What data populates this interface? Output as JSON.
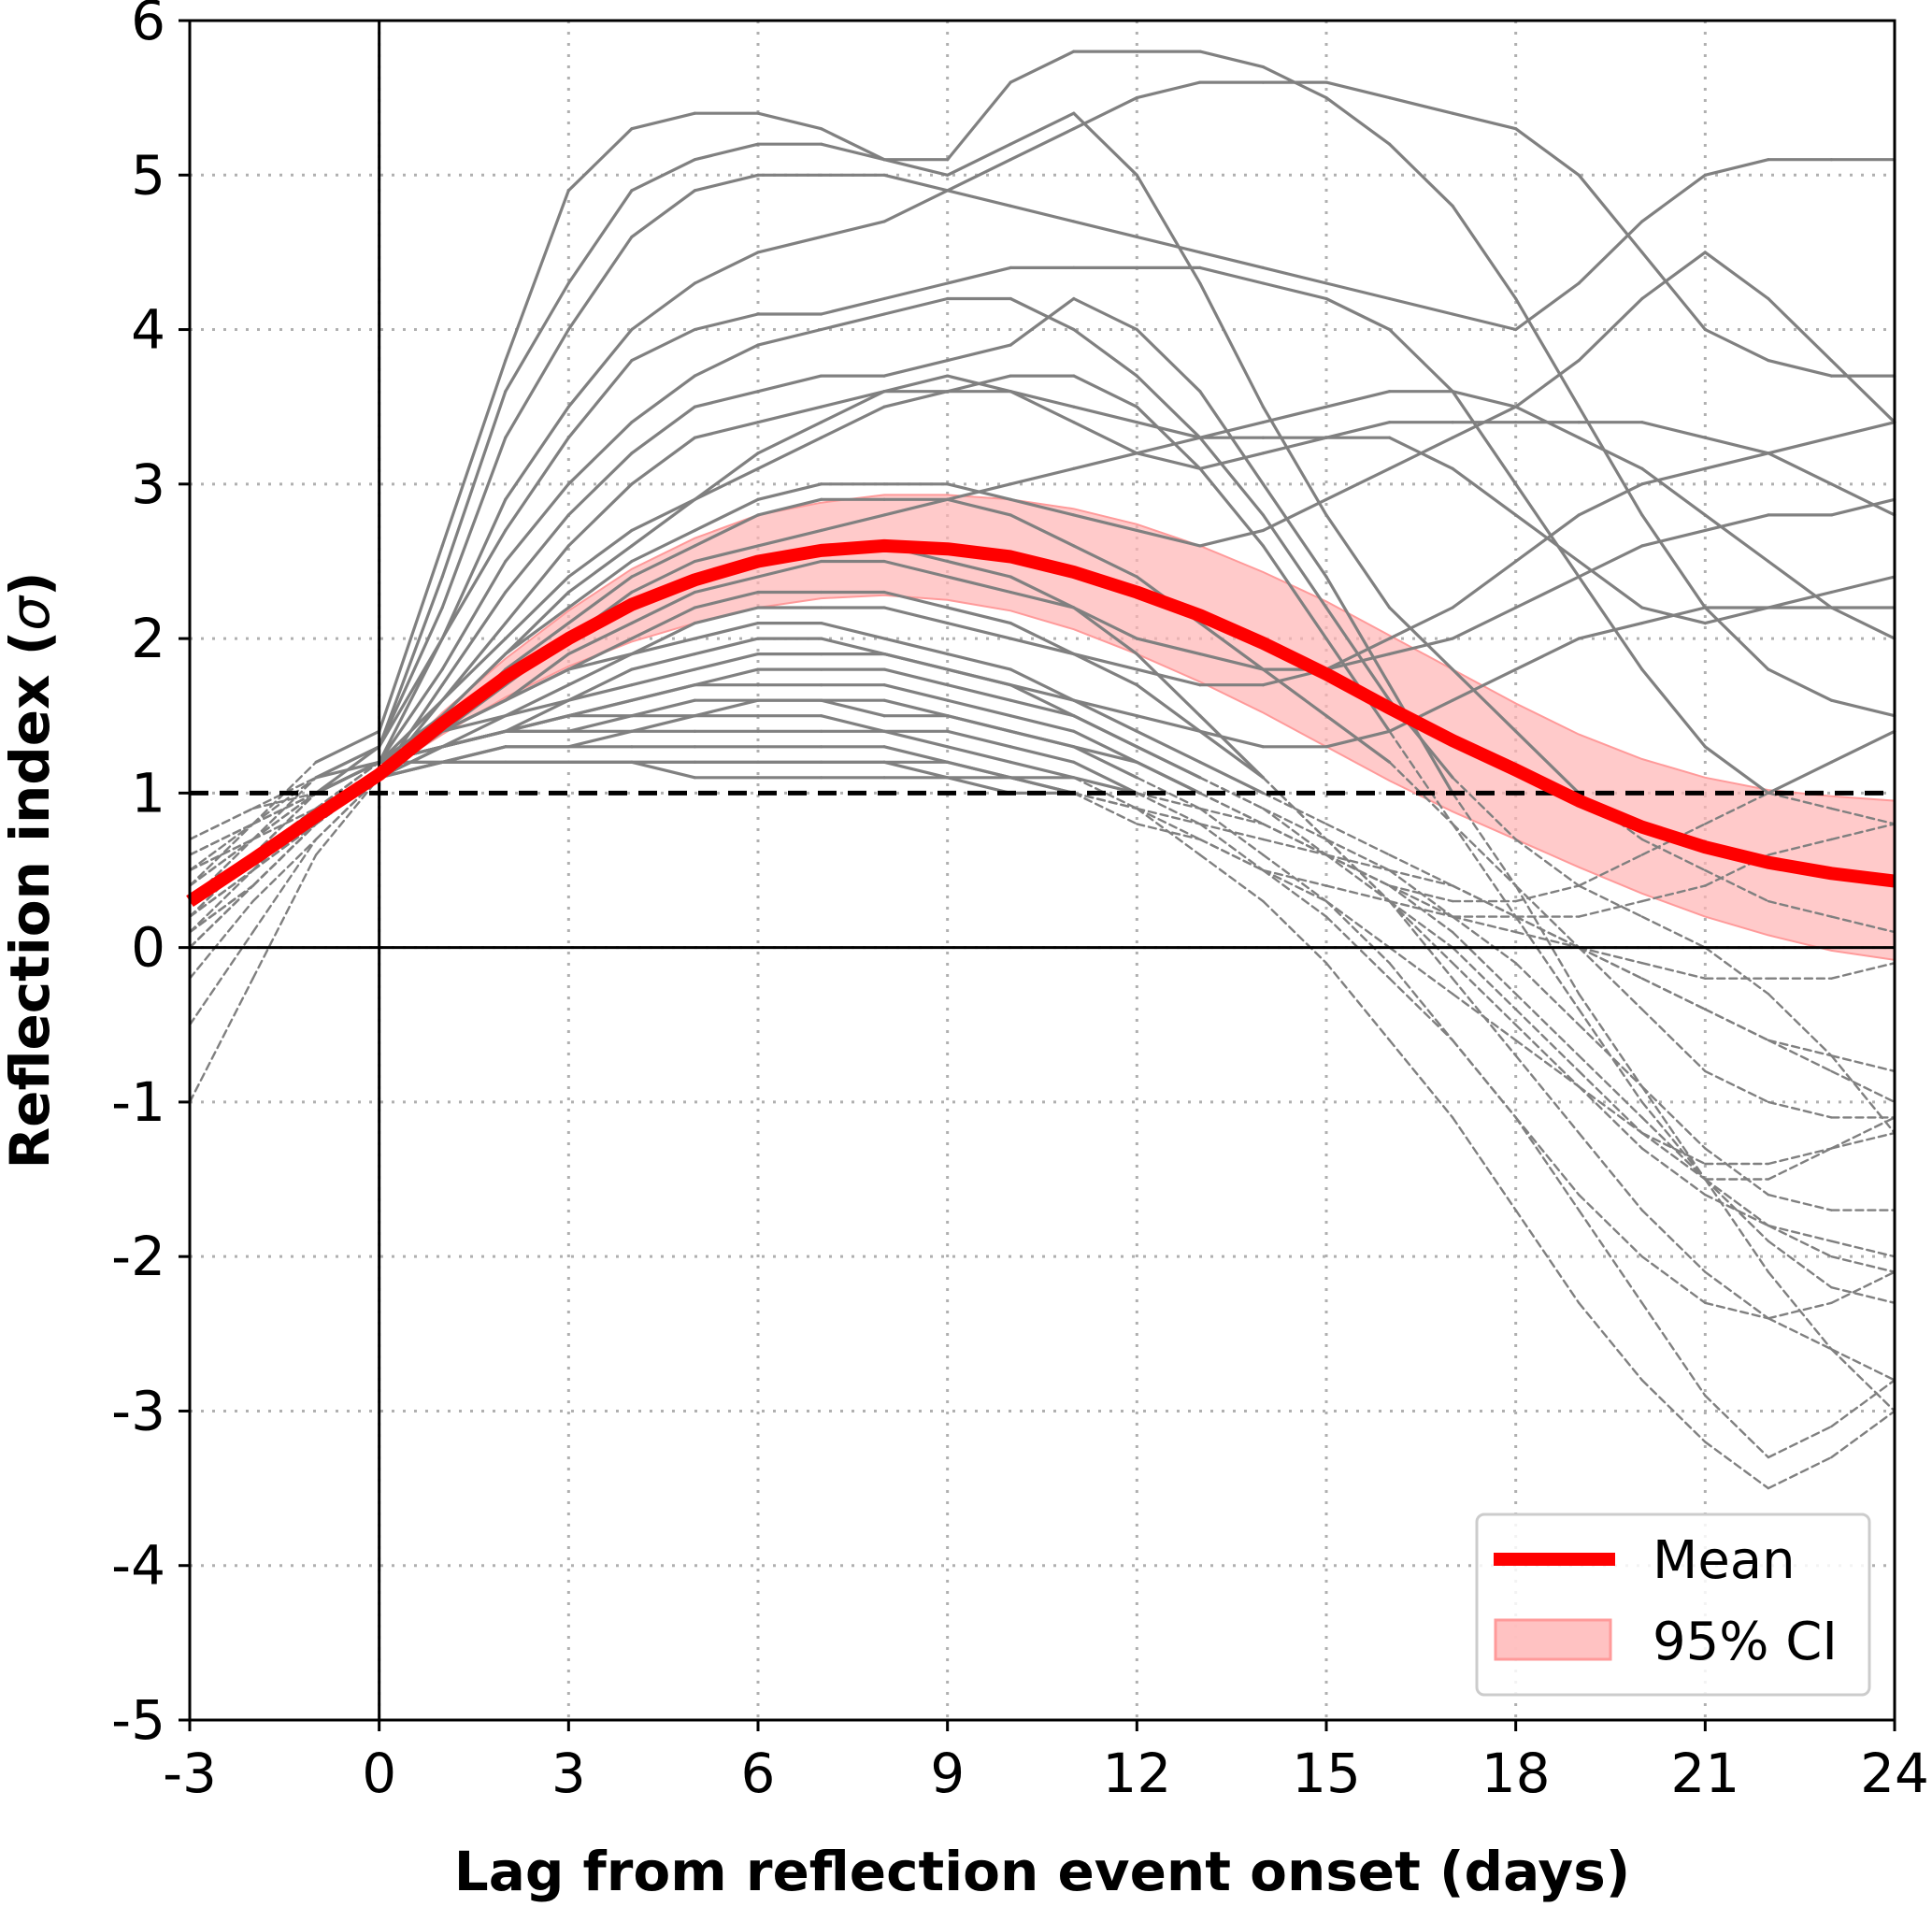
{
  "chart_data": {
    "type": "line",
    "xlabel": "Lag from reflection event onset (days)",
    "ylabel_text": "Reflection index (",
    "ylabel_symbol": "σ",
    "ylabel_close": ")",
    "xlim": [
      -3,
      24
    ],
    "ylim": [
      -5,
      6
    ],
    "xticks": [
      -3,
      0,
      3,
      6,
      9,
      12,
      15,
      18,
      21,
      24
    ],
    "yticks": [
      -5,
      -4,
      -3,
      -2,
      -1,
      0,
      1,
      2,
      3,
      4,
      5,
      6
    ],
    "grid": true,
    "threshold": 1,
    "legend_position": "lower-right",
    "colors": {
      "mean": "#ff0000",
      "ci_fill": "#ffb3b3",
      "ci_edge": "#ff9a9a",
      "events": "#808080",
      "grid": "#b0b0b0",
      "axes": "#000000"
    },
    "legend": {
      "mean_label": "Mean",
      "ci_label": "95% CI"
    },
    "x": [
      -3,
      -2,
      -1,
      0,
      1,
      2,
      3,
      4,
      5,
      6,
      7,
      8,
      9,
      10,
      11,
      12,
      13,
      14,
      15,
      16,
      17,
      18,
      19,
      20,
      21,
      22,
      23,
      24
    ],
    "mean": [
      0.3,
      0.57,
      0.85,
      1.12,
      1.45,
      1.75,
      2.0,
      2.22,
      2.38,
      2.5,
      2.57,
      2.6,
      2.58,
      2.53,
      2.43,
      2.3,
      2.15,
      1.97,
      1.77,
      1.55,
      1.34,
      1.15,
      0.95,
      0.78,
      0.65,
      0.55,
      0.48,
      0.43
    ],
    "ci_upper": [
      0.3,
      0.57,
      0.85,
      1.12,
      1.52,
      1.87,
      2.18,
      2.45,
      2.65,
      2.8,
      2.88,
      2.93,
      2.93,
      2.9,
      2.84,
      2.74,
      2.6,
      2.43,
      2.24,
      2.02,
      1.8,
      1.58,
      1.38,
      1.22,
      1.1,
      1.02,
      0.98,
      0.95
    ],
    "ci_lower": [
      0.3,
      0.57,
      0.85,
      1.12,
      1.38,
      1.62,
      1.82,
      1.98,
      2.1,
      2.2,
      2.26,
      2.28,
      2.25,
      2.18,
      2.06,
      1.9,
      1.72,
      1.52,
      1.3,
      1.08,
      0.88,
      0.7,
      0.52,
      0.35,
      0.2,
      0.08,
      -0.02,
      -0.08
    ],
    "event_series": [
      {
        "values": [
          0.4,
          0.8,
          1.2,
          1.4,
          2.6,
          3.8,
          4.9,
          5.3,
          5.4,
          5.4,
          5.3,
          5.1,
          5.0,
          5.2,
          5.4,
          5.0,
          4.3,
          3.5,
          2.8,
          2.2,
          1.8,
          1.4,
          1.0,
          0.7,
          0.5,
          0.3,
          0.2,
          0.1
        ]
      },
      {
        "values": [
          0.2,
          0.6,
          1.0,
          1.3,
          2.4,
          3.6,
          4.3,
          4.9,
          5.1,
          5.2,
          5.2,
          5.1,
          5.1,
          5.6,
          5.8,
          5.8,
          5.8,
          5.7,
          5.5,
          5.2,
          4.8,
          4.2,
          3.5,
          2.8,
          2.2,
          1.8,
          1.6,
          1.5
        ]
      },
      {
        "values": [
          0.3,
          0.7,
          1.1,
          1.3,
          2.2,
          3.3,
          4.0,
          4.6,
          4.9,
          5.0,
          5.0,
          5.0,
          4.9,
          4.8,
          4.7,
          4.6,
          4.5,
          4.4,
          4.3,
          4.2,
          4.1,
          4.0,
          4.3,
          4.7,
          5.0,
          5.1,
          5.1,
          5.1
        ]
      },
      {
        "values": [
          0.1,
          0.5,
          0.9,
          1.2,
          2.0,
          2.9,
          3.5,
          4.0,
          4.3,
          4.5,
          4.6,
          4.7,
          4.9,
          5.1,
          5.3,
          5.5,
          5.6,
          5.6,
          5.6,
          5.5,
          5.4,
          5.3,
          5.0,
          4.5,
          4.0,
          3.8,
          3.7,
          3.7
        ]
      },
      {
        "values": [
          0.5,
          0.8,
          1.1,
          1.3,
          2.0,
          2.7,
          3.3,
          3.8,
          4.0,
          4.1,
          4.1,
          4.2,
          4.3,
          4.4,
          4.4,
          4.4,
          4.4,
          4.3,
          4.2,
          4.0,
          3.6,
          3.0,
          2.4,
          1.8,
          1.3,
          1.0,
          0.9,
          0.8
        ]
      },
      {
        "values": [
          0.2,
          0.6,
          1.0,
          1.2,
          1.8,
          2.5,
          3.0,
          3.4,
          3.7,
          3.9,
          4.0,
          4.1,
          4.2,
          4.2,
          4.0,
          3.7,
          3.3,
          2.8,
          2.2,
          1.6,
          1.1,
          0.7,
          0.4,
          0.2,
          0.0,
          -0.3,
          -0.7,
          -1.2
        ]
      },
      {
        "values": [
          0.0,
          0.4,
          0.8,
          1.1,
          1.7,
          2.3,
          2.8,
          3.2,
          3.5,
          3.6,
          3.7,
          3.7,
          3.8,
          3.9,
          4.2,
          4.0,
          3.6,
          3.0,
          2.4,
          1.7,
          1.0,
          0.4,
          -0.3,
          -0.9,
          -1.5,
          -2.1,
          -2.6,
          -3.0
        ]
      },
      {
        "values": [
          -0.5,
          0.1,
          0.7,
          1.1,
          1.6,
          2.1,
          2.6,
          3.0,
          3.3,
          3.4,
          3.5,
          3.6,
          3.6,
          3.6,
          3.5,
          3.4,
          3.3,
          3.3,
          3.3,
          3.4,
          3.4,
          3.4,
          3.4,
          3.4,
          3.3,
          3.2,
          3.0,
          2.8
        ]
      },
      {
        "values": [
          0.6,
          0.8,
          1.0,
          1.2,
          1.6,
          2.0,
          2.4,
          2.7,
          2.9,
          3.1,
          3.3,
          3.5,
          3.6,
          3.7,
          3.7,
          3.5,
          3.1,
          2.6,
          2.0,
          1.4,
          0.8,
          0.2,
          -0.4,
          -1.0,
          -1.5,
          -1.9,
          -2.2,
          -2.3
        ]
      },
      {
        "values": [
          -1.0,
          -0.2,
          0.6,
          1.1,
          1.5,
          1.9,
          2.3,
          2.6,
          2.9,
          3.2,
          3.4,
          3.6,
          3.7,
          3.6,
          3.4,
          3.2,
          3.1,
          3.2,
          3.3,
          3.3,
          3.1,
          2.8,
          2.5,
          2.2,
          2.1,
          2.2,
          2.3,
          2.4
        ]
      },
      {
        "values": [
          0.3,
          0.6,
          0.9,
          1.2,
          1.5,
          1.9,
          2.2,
          2.5,
          2.7,
          2.9,
          3.0,
          3.0,
          3.0,
          2.9,
          2.8,
          2.7,
          2.6,
          2.7,
          2.9,
          3.1,
          3.3,
          3.5,
          3.8,
          4.2,
          4.5,
          4.2,
          3.8,
          3.4
        ]
      },
      {
        "values": [
          0.2,
          0.5,
          0.9,
          1.1,
          1.4,
          1.8,
          2.1,
          2.4,
          2.6,
          2.8,
          2.9,
          2.9,
          2.9,
          2.8,
          2.6,
          2.4,
          2.1,
          1.8,
          1.5,
          1.2,
          0.8,
          0.4,
          0.0,
          -0.4,
          -0.8,
          -1.0,
          -1.1,
          -1.1
        ]
      },
      {
        "values": [
          0.5,
          0.7,
          0.9,
          1.1,
          1.4,
          1.7,
          2.0,
          2.3,
          2.5,
          2.6,
          2.7,
          2.8,
          2.9,
          3.0,
          3.1,
          3.2,
          3.3,
          3.4,
          3.5,
          3.6,
          3.6,
          3.5,
          3.3,
          3.1,
          2.8,
          2.5,
          2.2,
          2.0
        ]
      },
      {
        "values": [
          0.1,
          0.4,
          0.8,
          1.1,
          1.4,
          1.7,
          2.0,
          2.2,
          2.4,
          2.5,
          2.6,
          2.6,
          2.5,
          2.4,
          2.2,
          1.9,
          1.5,
          1.1,
          0.7,
          0.3,
          -0.1,
          -0.5,
          -0.9,
          -1.3,
          -1.6,
          -1.8,
          -1.9,
          -2.0
        ]
      },
      {
        "values": [
          0.7,
          0.9,
          1.0,
          1.2,
          1.4,
          1.6,
          1.9,
          2.1,
          2.3,
          2.4,
          2.5,
          2.5,
          2.4,
          2.3,
          2.2,
          2.0,
          1.9,
          1.8,
          1.8,
          1.9,
          2.0,
          2.2,
          2.4,
          2.6,
          2.7,
          2.8,
          2.8,
          2.9
        ]
      },
      {
        "values": [
          0.0,
          0.4,
          0.8,
          1.1,
          1.4,
          1.6,
          1.8,
          2.0,
          2.2,
          2.3,
          2.3,
          2.3,
          2.2,
          2.1,
          1.9,
          1.7,
          1.4,
          1.1,
          0.7,
          0.3,
          -0.2,
          -0.7,
          -1.2,
          -1.7,
          -2.1,
          -2.4,
          -2.6,
          -2.8
        ]
      },
      {
        "values": [
          0.3,
          0.6,
          0.9,
          1.2,
          1.4,
          1.6,
          1.8,
          1.9,
          2.1,
          2.2,
          2.2,
          2.2,
          2.1,
          2.0,
          1.9,
          1.8,
          1.7,
          1.7,
          1.8,
          2.0,
          2.2,
          2.5,
          2.8,
          3.0,
          3.1,
          3.2,
          3.3,
          3.4
        ]
      },
      {
        "values": [
          0.4,
          0.7,
          1.0,
          1.2,
          1.4,
          1.5,
          1.7,
          1.9,
          2.0,
          2.1,
          2.1,
          2.0,
          1.9,
          1.8,
          1.6,
          1.4,
          1.2,
          1.0,
          0.8,
          0.6,
          0.4,
          0.2,
          0.0,
          -0.2,
          -0.4,
          -0.6,
          -0.8,
          -1.0
        ]
      },
      {
        "values": [
          0.2,
          0.5,
          0.8,
          1.1,
          1.3,
          1.5,
          1.6,
          1.8,
          1.9,
          2.0,
          2.0,
          1.9,
          1.8,
          1.7,
          1.5,
          1.3,
          1.1,
          0.9,
          0.6,
          0.3,
          0.0,
          -0.4,
          -0.8,
          -1.2,
          -1.5,
          -1.5,
          -1.3,
          -1.2
        ]
      },
      {
        "values": [
          0.6,
          0.8,
          1.0,
          1.2,
          1.3,
          1.4,
          1.6,
          1.7,
          1.8,
          1.9,
          1.9,
          1.9,
          1.8,
          1.7,
          1.6,
          1.5,
          1.4,
          1.3,
          1.3,
          1.4,
          1.6,
          1.8,
          2.0,
          2.1,
          2.2,
          2.2,
          2.2,
          2.2
        ]
      },
      {
        "values": [
          0.1,
          0.4,
          0.8,
          1.1,
          1.3,
          1.4,
          1.5,
          1.6,
          1.7,
          1.8,
          1.8,
          1.8,
          1.7,
          1.6,
          1.5,
          1.3,
          1.1,
          0.9,
          0.7,
          0.5,
          0.2,
          -0.1,
          -0.5,
          -0.9,
          -1.3,
          -1.6,
          -1.7,
          -1.7
        ]
      },
      {
        "values": [
          0.5,
          0.7,
          1.0,
          1.2,
          1.3,
          1.4,
          1.5,
          1.6,
          1.7,
          1.7,
          1.7,
          1.7,
          1.6,
          1.5,
          1.4,
          1.2,
          1.0,
          0.8,
          0.6,
          0.4,
          0.2,
          0.1,
          0.0,
          -0.1,
          -0.2,
          -0.2,
          -0.2,
          -0.1
        ]
      },
      {
        "values": [
          -0.2,
          0.3,
          0.7,
          1.1,
          1.3,
          1.4,
          1.5,
          1.5,
          1.6,
          1.6,
          1.6,
          1.6,
          1.5,
          1.4,
          1.3,
          1.1,
          0.9,
          0.6,
          0.3,
          -0.1,
          -0.6,
          -1.1,
          -1.7,
          -2.3,
          -2.9,
          -3.3,
          -3.1,
          -2.8
        ]
      },
      {
        "values": [
          0.3,
          0.6,
          0.9,
          1.2,
          1.3,
          1.4,
          1.4,
          1.5,
          1.5,
          1.6,
          1.6,
          1.5,
          1.5,
          1.4,
          1.3,
          1.2,
          1.0,
          0.8,
          0.6,
          0.4,
          0.3,
          0.3,
          0.4,
          0.6,
          0.8,
          1.0,
          1.2,
          1.4
        ]
      },
      {
        "values": [
          0.7,
          0.9,
          1.1,
          1.2,
          1.3,
          1.4,
          1.4,
          1.4,
          1.5,
          1.5,
          1.5,
          1.4,
          1.4,
          1.3,
          1.2,
          1.0,
          0.8,
          0.5,
          0.2,
          -0.2,
          -0.6,
          -1.1,
          -1.6,
          -2.0,
          -2.3,
          -2.4,
          -2.3,
          -2.1
        ]
      },
      {
        "values": [
          0.0,
          0.4,
          0.8,
          1.1,
          1.2,
          1.3,
          1.3,
          1.4,
          1.4,
          1.4,
          1.4,
          1.4,
          1.3,
          1.2,
          1.1,
          0.9,
          0.6,
          0.3,
          -0.1,
          -0.6,
          -1.1,
          -1.7,
          -2.3,
          -2.8,
          -3.2,
          -3.5,
          -3.3,
          -3.0
        ]
      },
      {
        "values": [
          0.4,
          0.7,
          1.0,
          1.2,
          1.2,
          1.3,
          1.3,
          1.3,
          1.3,
          1.3,
          1.3,
          1.3,
          1.2,
          1.1,
          1.0,
          0.8,
          0.7,
          0.5,
          0.4,
          0.3,
          0.2,
          0.2,
          0.2,
          0.3,
          0.4,
          0.6,
          0.7,
          0.8
        ]
      },
      {
        "values": [
          0.2,
          0.5,
          0.8,
          1.1,
          1.2,
          1.2,
          1.2,
          1.2,
          1.2,
          1.2,
          1.2,
          1.2,
          1.1,
          1.1,
          1.0,
          0.9,
          0.7,
          0.5,
          0.3,
          0.0,
          -0.3,
          -0.6,
          -0.9,
          -1.2,
          -1.4,
          -1.4,
          -1.3,
          -1.1
        ]
      },
      {
        "values": [
          0.6,
          0.8,
          1.0,
          1.2,
          1.2,
          1.2,
          1.2,
          1.2,
          1.1,
          1.1,
          1.1,
          1.1,
          1.1,
          1.0,
          1.0,
          0.9,
          0.8,
          0.7,
          0.6,
          0.5,
          0.4,
          0.2,
          0.0,
          -0.2,
          -0.4,
          -0.6,
          -0.7,
          -0.8
        ]
      },
      {
        "values": [
          0.1,
          0.4,
          0.8,
          1.1,
          1.2,
          1.2,
          1.2,
          1.2,
          1.2,
          1.2,
          1.2,
          1.2,
          1.2,
          1.1,
          1.1,
          1.0,
          0.9,
          0.8,
          0.6,
          0.4,
          0.1,
          -0.3,
          -0.7,
          -1.1,
          -1.5,
          -1.8,
          -2.0,
          -2.1
        ]
      }
    ]
  }
}
